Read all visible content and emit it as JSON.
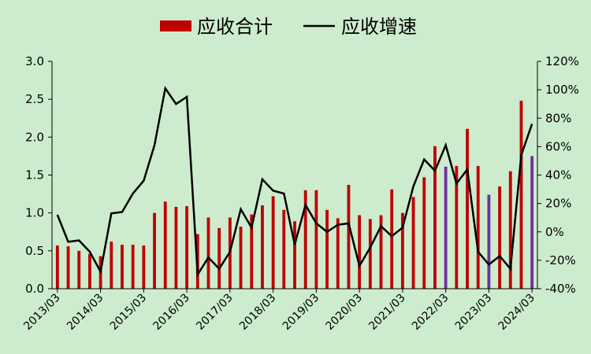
{
  "chart_data": {
    "type": "bar",
    "legend": {
      "placement": "top-center",
      "items": [
        {
          "label": "应收合计",
          "kind": "bar",
          "color": "#c00000"
        },
        {
          "label": "应收增速",
          "kind": "line",
          "color": "#000000"
        }
      ]
    },
    "x": [
      "2013/03",
      "2013/06",
      "2013/09",
      "2013/12",
      "2014/03",
      "2014/06",
      "2014/09",
      "2014/12",
      "2015/03",
      "2015/06",
      "2015/09",
      "2015/12",
      "2016/03",
      "2016/06",
      "2016/09",
      "2016/12",
      "2017/03",
      "2017/06",
      "2017/09",
      "2017/12",
      "2018/03",
      "2018/06",
      "2018/09",
      "2018/12",
      "2019/03",
      "2019/06",
      "2019/09",
      "2019/12",
      "2020/03",
      "2020/06",
      "2020/09",
      "2020/12",
      "2021/03",
      "2021/06",
      "2021/09",
      "2021/12",
      "2022/03",
      "2022/06",
      "2022/09",
      "2022/12",
      "2023/03",
      "2023/06",
      "2023/09",
      "2023/12",
      "2024/03"
    ],
    "x_tick_labels": [
      "2013/03",
      "2014/03",
      "2015/03",
      "2016/03",
      "2017/03",
      "2018/03",
      "2019/03",
      "2020/03",
      "2021/03",
      "2022/03",
      "2023/03",
      "2024/03"
    ],
    "series": [
      {
        "name": "应收合计",
        "type": "bar",
        "axis": "left",
        "color": "#c00000",
        "highlight_color": "#7030a0",
        "highlight_indices": [
          36,
          40,
          44
        ],
        "values": [
          0.57,
          0.56,
          0.5,
          0.46,
          0.43,
          0.62,
          0.58,
          0.58,
          0.57,
          1.0,
          1.15,
          1.08,
          1.09,
          0.72,
          0.94,
          0.8,
          0.94,
          0.82,
          0.98,
          1.1,
          1.22,
          1.04,
          0.89,
          1.3,
          1.3,
          1.04,
          0.93,
          1.37,
          0.97,
          0.92,
          0.97,
          1.31,
          1.0,
          1.21,
          1.47,
          1.88,
          1.61,
          1.62,
          2.11,
          1.62,
          1.24,
          1.35,
          1.55,
          2.48,
          1.75
        ]
      },
      {
        "name": "应收增速",
        "type": "line",
        "axis": "right",
        "color": "#000000",
        "values": [
          12,
          -7,
          -6,
          -14,
          -28,
          13,
          14,
          27,
          36,
          61,
          101,
          90,
          95,
          -30,
          -18,
          -26,
          -14,
          16,
          3,
          37,
          29,
          27,
          -9,
          19,
          6,
          0,
          5,
          6,
          -24,
          -11,
          4,
          -3,
          3,
          32,
          51,
          43,
          61,
          34,
          44,
          -14,
          -23,
          -17,
          -26,
          54,
          76
        ]
      }
    ],
    "y_left": {
      "min": 0,
      "max": 3,
      "ticks": [
        "0.0",
        "0.5",
        "1.0",
        "1.5",
        "2.0",
        "2.5",
        "3.0"
      ]
    },
    "y_right": {
      "min": -40,
      "max": 120,
      "ticks": [
        "-40%",
        "-20%",
        "0%",
        "20%",
        "40%",
        "60%",
        "80%",
        "100%",
        "120%"
      ]
    },
    "grid": false
  }
}
